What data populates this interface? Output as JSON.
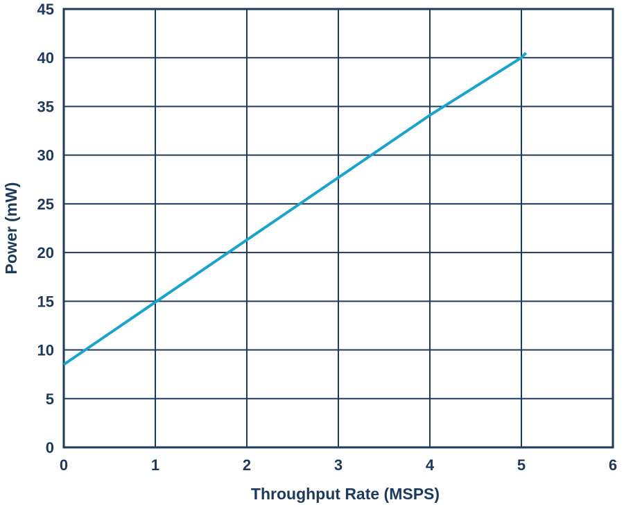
{
  "chart_data": {
    "type": "line",
    "title": "",
    "xlabel": "Throughput Rate (MSPS)",
    "ylabel": "Power (mW)",
    "xlim": [
      0,
      6
    ],
    "ylim": [
      0,
      45
    ],
    "xticks": [
      0,
      1,
      2,
      3,
      4,
      5,
      6
    ],
    "yticks": [
      0,
      5,
      10,
      15,
      20,
      25,
      30,
      35,
      40,
      45
    ],
    "grid": true,
    "legend": "none",
    "series": [
      {
        "x": [
          0,
          1,
          2,
          3,
          4,
          5,
          5.05
        ],
        "y": [
          8.5,
          14.9,
          21.3,
          27.7,
          34.1,
          40.0,
          40.5
        ]
      }
    ]
  },
  "colors": {
    "line": "#1aa3cc",
    "grid": "#1d3a5c",
    "text": "#1d3a5c"
  }
}
